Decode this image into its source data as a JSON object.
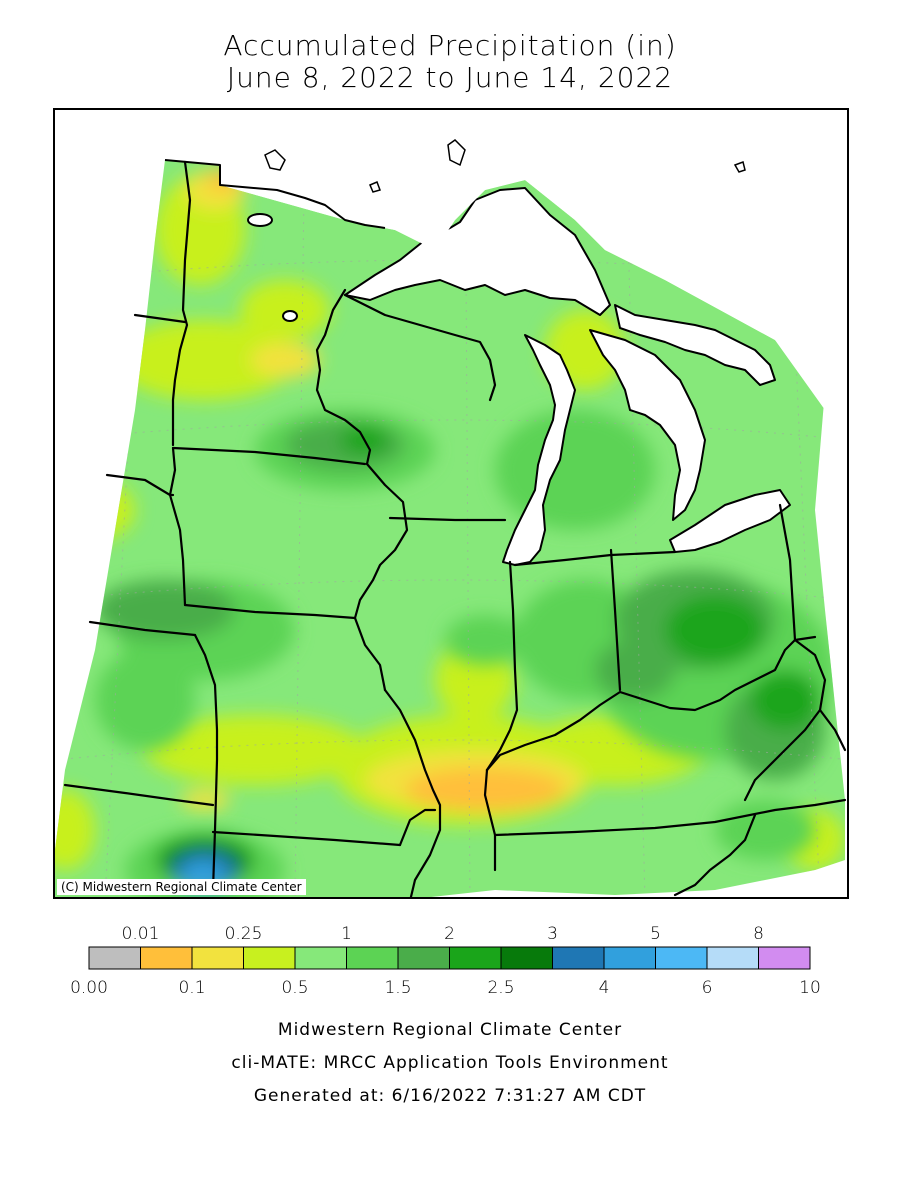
{
  "title": {
    "line1": "Accumulated Precipitation (in)",
    "line2": "June 8, 2022 to June 14, 2022"
  },
  "map": {
    "region": "Midwest United States",
    "copyright": "(C) Midwestern Regional Climate Center",
    "land_color": "#86e87a",
    "water_color": "#ffffff"
  },
  "legend": {
    "top_labels": [
      "0.01",
      "0.25",
      "1",
      "2",
      "3",
      "5",
      "8"
    ],
    "bottom_labels": [
      "0.00",
      "0.1",
      "0.5",
      "1.5",
      "2.5",
      "4",
      "6",
      "10"
    ],
    "bins": [
      {
        "color": "#bebebe"
      },
      {
        "color": "#ffbf3a"
      },
      {
        "color": "#f2e23e"
      },
      {
        "color": "#c8f01f"
      },
      {
        "color": "#86e87a"
      },
      {
        "color": "#5cd354"
      },
      {
        "color": "#4aad4a"
      },
      {
        "color": "#1aa51a"
      },
      {
        "color": "#077a0b"
      },
      {
        "color": "#1f77b4"
      },
      {
        "color": "#31a0dd"
      },
      {
        "color": "#4cb8f5"
      },
      {
        "color": "#b5dcf8"
      },
      {
        "color": "#d28cf0"
      }
    ]
  },
  "footer": {
    "line1": "Midwestern Regional Climate Center",
    "line2": "cli-MATE: MRCC Application Tools Environment",
    "line3": "Generated at: 6/16/2022 7:31:27 AM CDT"
  }
}
